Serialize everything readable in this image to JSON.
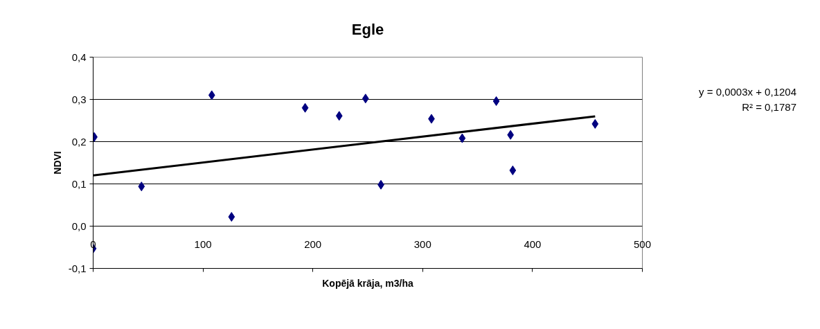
{
  "chart_data": {
    "type": "scatter",
    "title": "Egle",
    "xlabel": "Kopējā krāja, m3/ha",
    "ylabel": "NDVI",
    "xlim": [
      0,
      500
    ],
    "xticks": [
      0,
      100,
      200,
      300,
      400,
      500
    ],
    "ylim": [
      -0.1,
      0.4
    ],
    "yticks": [
      {
        "value": -0.1,
        "label": "-0,1"
      },
      {
        "value": 0,
        "label": "0,0"
      },
      {
        "value": 0.1,
        "label": "0,1"
      },
      {
        "value": 0.2,
        "label": "0,2"
      },
      {
        "value": 0.3,
        "label": "0,3"
      },
      {
        "value": 0.4,
        "label": "0,4"
      }
    ],
    "grid": "y",
    "annotations": [
      "y = 0,0003x + 0,1204",
      "R² = 0,1787"
    ],
    "series": [
      {
        "marker": "diamond",
        "color": "#000080",
        "x": [
          0,
          1,
          44,
          108,
          126,
          193,
          224,
          248,
          262,
          308,
          336,
          367,
          380,
          382,
          457
        ],
        "values": [
          -0.053,
          0.211,
          0.094,
          0.31,
          0.022,
          0.28,
          0.261,
          0.302,
          0.098,
          0.254,
          0.208,
          0.296,
          0.216,
          0.132,
          0.242
        ]
      },
      {
        "type": "line",
        "color": "#000000",
        "line_style": "solid",
        "x": [
          0,
          457
        ],
        "values": [
          0.12,
          0.26
        ]
      }
    ]
  }
}
